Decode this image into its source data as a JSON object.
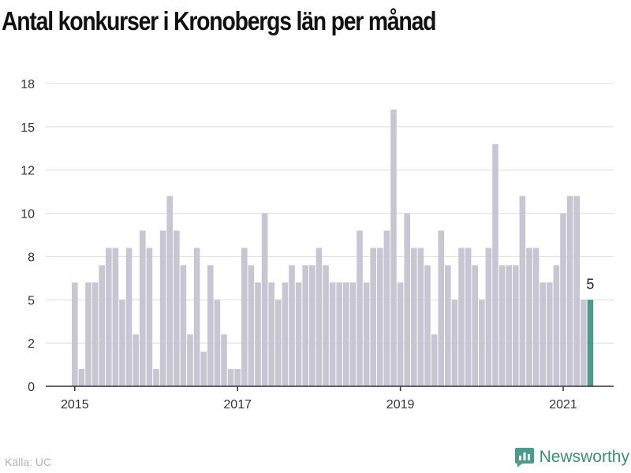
{
  "title": "Antal konkurser i Kronobergs län per månad",
  "source": "Källa: UC",
  "brand": {
    "name": "Newsworthy"
  },
  "colors": {
    "bar": "#c8c6d2",
    "highlight": "#4a9d8e",
    "grid": "#dddddd",
    "axis": "#333333",
    "text": "#333333"
  },
  "chart_data": {
    "type": "bar",
    "title": "Antal konkurser i Kronobergs län per månad",
    "xlabel": "",
    "ylabel": "",
    "ylim": [
      0,
      18
    ],
    "grid": true,
    "yticks": [
      {
        "value": 0,
        "label": "0"
      },
      {
        "value": 2.5,
        "label": "2"
      },
      {
        "value": 5,
        "label": "5"
      },
      {
        "value": 7.5,
        "label": "8"
      },
      {
        "value": 10,
        "label": "10"
      },
      {
        "value": 12.5,
        "label": "12"
      },
      {
        "value": 15,
        "label": "15"
      },
      {
        "value": 17.5,
        "label": "18"
      }
    ],
    "xticks": [
      {
        "index": 0,
        "label": "2015"
      },
      {
        "index": 24,
        "label": "2017"
      },
      {
        "index": 48,
        "label": "2019"
      },
      {
        "index": 72,
        "label": "2021"
      }
    ],
    "start_month": "2015-01",
    "values": [
      6,
      1,
      6,
      6,
      7,
      8,
      8,
      5,
      8,
      3,
      9,
      8,
      1,
      9,
      11,
      9,
      7,
      3,
      8,
      2,
      7,
      5,
      3,
      1,
      1,
      8,
      7,
      6,
      10,
      6,
      5,
      6,
      7,
      6,
      7,
      7,
      8,
      7,
      6,
      6,
      6,
      6,
      9,
      6,
      8,
      8,
      9,
      16,
      6,
      10,
      8,
      8,
      7,
      3,
      9,
      7,
      5,
      8,
      8,
      7,
      5,
      8,
      14,
      7,
      7,
      7,
      11,
      8,
      8,
      6,
      6,
      7,
      10,
      11,
      11,
      5,
      5
    ],
    "highlight_index": 76,
    "annotation": {
      "index": 76,
      "label": "5"
    }
  }
}
